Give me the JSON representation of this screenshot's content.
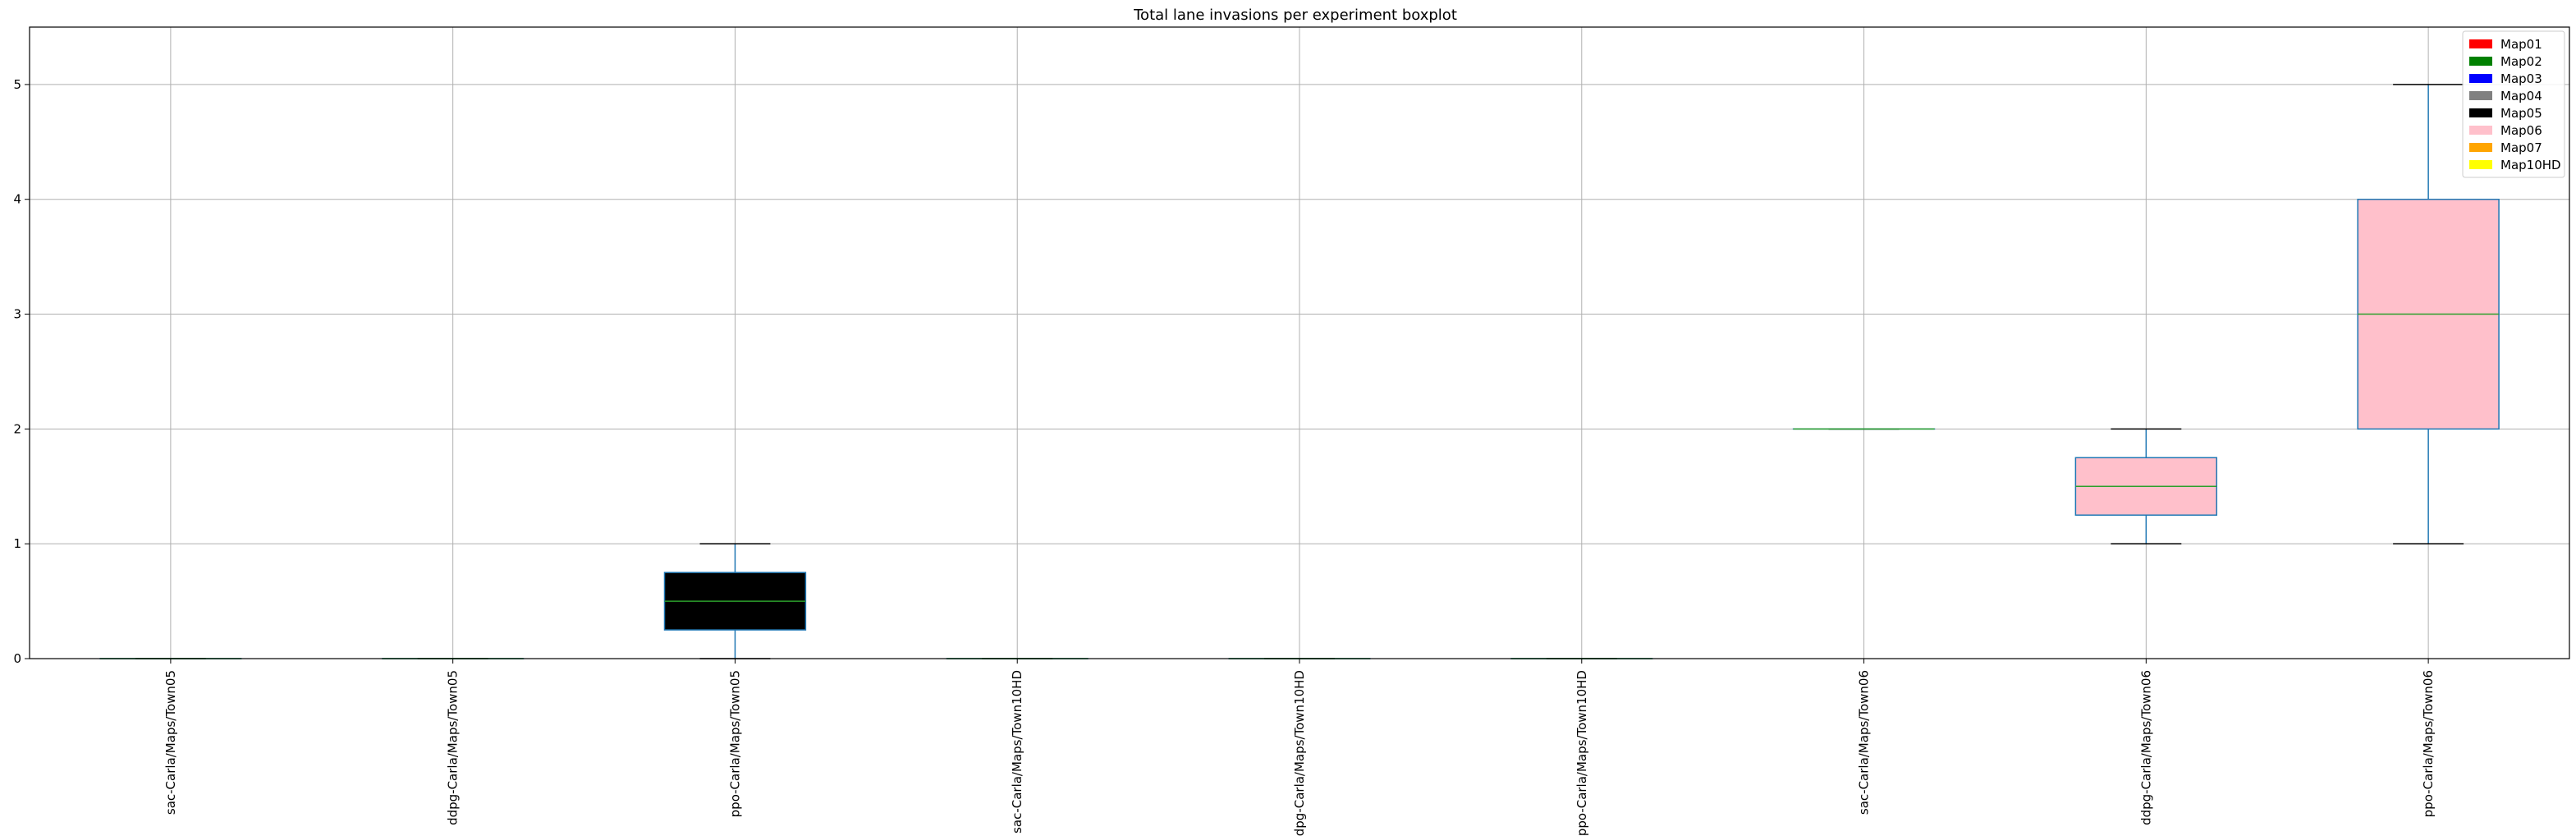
{
  "chart_data": {
    "type": "boxplot",
    "title": "Total lane invasions per experiment boxplot",
    "xlabel": "",
    "ylabel": "",
    "ylim": [
      0,
      5.5
    ],
    "yticks": [
      "0",
      "1",
      "2",
      "3",
      "4",
      "5"
    ],
    "grid": true,
    "legend_position": "top-right",
    "legend": [
      {
        "label": "Map01",
        "color": "#ff0000"
      },
      {
        "label": "Map02",
        "color": "#008000"
      },
      {
        "label": "Map03",
        "color": "#0000ff"
      },
      {
        "label": "Map04",
        "color": "#808080"
      },
      {
        "label": "Map05",
        "color": "#000000"
      },
      {
        "label": "Map06",
        "color": "#ffc0cb"
      },
      {
        "label": "Map07",
        "color": "#ffa500"
      },
      {
        "label": "Map10HD",
        "color": "#ffff00"
      }
    ],
    "boxes": [
      {
        "label": "sac-Carla/Maps/Town05",
        "min": 0,
        "q1": 0,
        "median": 0,
        "q3": 0,
        "max": 0,
        "color": "#000000"
      },
      {
        "label": "ddpg-Carla/Maps/Town05",
        "min": 0,
        "q1": 0,
        "median": 0,
        "q3": 0,
        "max": 0,
        "color": "#000000"
      },
      {
        "label": "ppo-Carla/Maps/Town05",
        "min": 0,
        "q1": 0.25,
        "median": 0.5,
        "q3": 0.75,
        "max": 1,
        "color": "#000000"
      },
      {
        "label": "sac-Carla/Maps/Town10HD",
        "min": 0,
        "q1": 0,
        "median": 0,
        "q3": 0,
        "max": 0,
        "color": "#ffff00"
      },
      {
        "label": "ddpg-Carla/Maps/Town10HD",
        "min": 0,
        "q1": 0,
        "median": 0,
        "q3": 0,
        "max": 0,
        "color": "#ffff00"
      },
      {
        "label": "ppo-Carla/Maps/Town10HD",
        "min": 0,
        "q1": 0,
        "median": 0,
        "q3": 0,
        "max": 0,
        "color": "#ffff00"
      },
      {
        "label": "sac-Carla/Maps/Town06",
        "min": 2,
        "q1": 2,
        "median": 2,
        "q3": 2,
        "max": 2,
        "color": "#ffc0cb"
      },
      {
        "label": "ddpg-Carla/Maps/Town06",
        "min": 1,
        "q1": 1.25,
        "median": 1.5,
        "q3": 1.75,
        "max": 2,
        "color": "#ffc0cb"
      },
      {
        "label": "ppo-Carla/Maps/Town06",
        "min": 1,
        "q1": 2,
        "median": 3,
        "q3": 4,
        "max": 5,
        "color": "#ffc0cb"
      }
    ],
    "colors": {
      "box_edge": "#1f77b4",
      "median": "#2ca02c",
      "whisker_cap": "#000000",
      "grid": "#b0b0b0"
    }
  }
}
